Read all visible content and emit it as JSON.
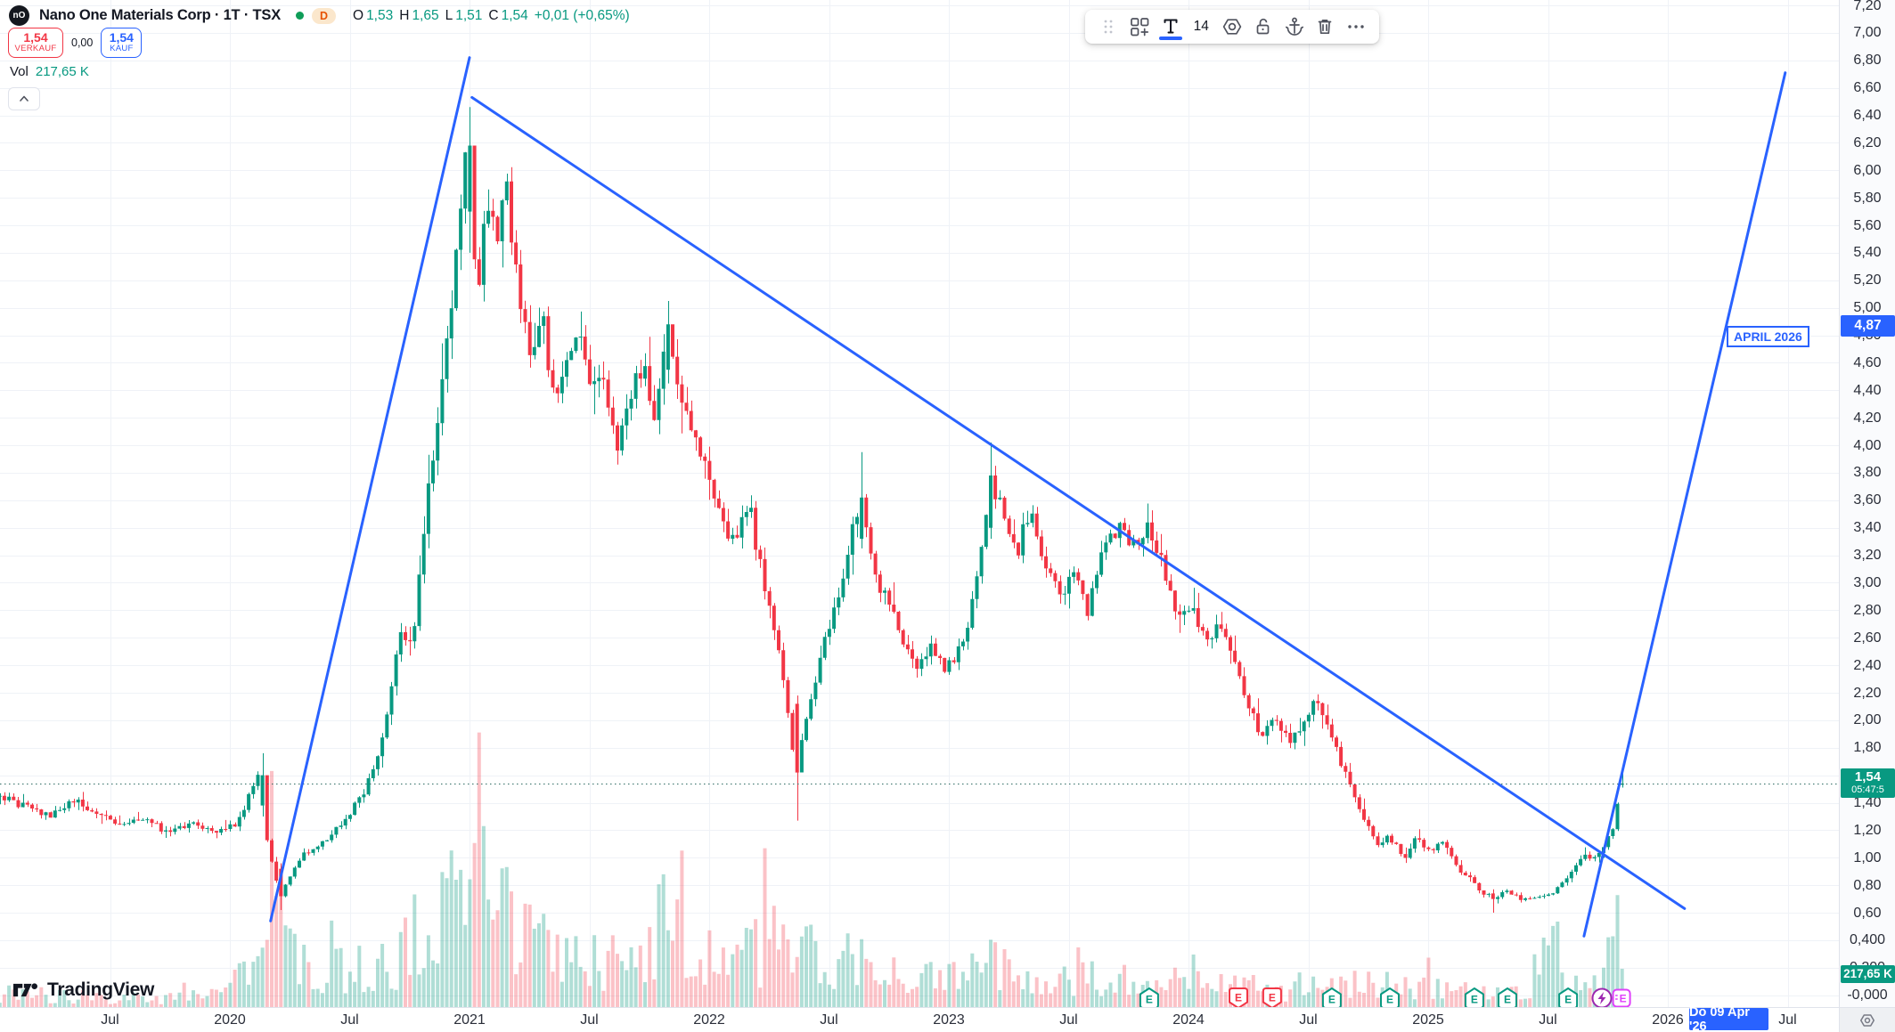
{
  "header": {
    "logo": "nO",
    "title": "Nano One Materials Corp · 1T · TSX",
    "interval_badge": "D",
    "ohlc": {
      "o_label": "O",
      "o": "1,53",
      "h_label": "H",
      "h": "1,65",
      "l_label": "L",
      "l": "1,51",
      "c_label": "C",
      "c": "1,54",
      "change": "+0,01 (+0,65%)"
    }
  },
  "trade_panel": {
    "sell_price": "1,54",
    "sell_label": "VERKAUF",
    "spread": "0,00",
    "buy_price": "1,54",
    "buy_label": "KAUF"
  },
  "volume_row": {
    "label": "Vol",
    "value": "217,65 K"
  },
  "toolbar": {
    "font_size": "14",
    "icons": [
      "drag-handle",
      "template",
      "text-tool-active",
      "font-size",
      "settings",
      "lock-open",
      "anchor",
      "trash",
      "more"
    ]
  },
  "watermark": {
    "text": "TradingView"
  },
  "annotation": {
    "text": "APRIL 2026"
  },
  "price_axis": {
    "ticks": [
      [
        7.2,
        "7,20"
      ],
      [
        7.0,
        "7,00"
      ],
      [
        6.8,
        "6,80"
      ],
      [
        6.6,
        "6,60"
      ],
      [
        6.4,
        "6,40"
      ],
      [
        6.2,
        "6,20"
      ],
      [
        6.0,
        "6,00"
      ],
      [
        5.8,
        "5,80"
      ],
      [
        5.6,
        "5,60"
      ],
      [
        5.4,
        "5,40"
      ],
      [
        5.2,
        "5,20"
      ],
      [
        5.0,
        "5,00"
      ],
      [
        4.8,
        "4,80"
      ],
      [
        4.6,
        "4,60"
      ],
      [
        4.4,
        "4,40"
      ],
      [
        4.2,
        "4,20"
      ],
      [
        4.0,
        "4,00"
      ],
      [
        3.8,
        "3,80"
      ],
      [
        3.6,
        "3,60"
      ],
      [
        3.4,
        "3,40"
      ],
      [
        3.2,
        "3,20"
      ],
      [
        3.0,
        "3,00"
      ],
      [
        2.8,
        "2,80"
      ],
      [
        2.6,
        "2,60"
      ],
      [
        2.4,
        "2,40"
      ],
      [
        2.2,
        "2,20"
      ],
      [
        2.0,
        "2,00"
      ],
      [
        1.8,
        "1,80"
      ],
      [
        1.6,
        "1,60"
      ],
      [
        1.4,
        "1,40"
      ],
      [
        1.2,
        "1,20"
      ],
      [
        1.0,
        "1,00"
      ],
      [
        0.8,
        "0,80"
      ],
      [
        0.6,
        "0,60"
      ],
      [
        0.4,
        "0,400"
      ],
      [
        0.2,
        "0,200"
      ],
      [
        0.0,
        "-0,000"
      ]
    ],
    "current_price_label": {
      "price": "1,54",
      "countdown": "05:47:5",
      "color": "#089981"
    },
    "drawing_price_label": {
      "price": "4,87",
      "color": "#2962ff"
    },
    "volume_label": {
      "value": "217,65 K",
      "color": "#089981"
    }
  },
  "time_axis": {
    "ticks": [
      [
        2019.5,
        "Jul"
      ],
      [
        2020,
        "2020"
      ],
      [
        2020.5,
        "Jul"
      ],
      [
        2021,
        "2021"
      ],
      [
        2021.5,
        "Jul"
      ],
      [
        2022,
        "2022"
      ],
      [
        2022.5,
        "Jul"
      ],
      [
        2023,
        "2023"
      ],
      [
        2023.5,
        "Jul"
      ],
      [
        2024,
        "2024"
      ],
      [
        2024.5,
        "Jul"
      ],
      [
        2025,
        "2025"
      ],
      [
        2025.5,
        "Jul"
      ],
      [
        2026,
        "2026"
      ],
      [
        2026.5,
        "Jul"
      ]
    ],
    "date_label": {
      "text": "Do 09 Apr '26",
      "color": "#2962ff"
    }
  },
  "chart_data": {
    "type": "candlestick",
    "title": "Nano One Materials Corp · 1T · TSX",
    "ylim": [
      0,
      7.2
    ],
    "xlim": [
      2019.04,
      2026.7
    ],
    "xstart": 2019.04,
    "xend": 2025.81,
    "grid": true,
    "current_price": 1.54,
    "last_candle": {
      "o": 1.53,
      "h": 1.65,
      "l": 1.51,
      "c": 1.54
    },
    "colors": {
      "up": "#089981",
      "down": "#f23645",
      "trendline": "#2962ff"
    },
    "close_anchors": [
      [
        2019.04,
        1.45
      ],
      [
        2019.15,
        1.38
      ],
      [
        2019.25,
        1.3
      ],
      [
        2019.35,
        1.42
      ],
      [
        2019.45,
        1.34
      ],
      [
        2019.55,
        1.24
      ],
      [
        2019.65,
        1.3
      ],
      [
        2019.75,
        1.17
      ],
      [
        2019.85,
        1.25
      ],
      [
        2019.95,
        1.2
      ],
      [
        2020.04,
        1.25
      ],
      [
        2020.1,
        1.48
      ],
      [
        2020.13,
        1.6
      ],
      [
        2020.17,
        1.05
      ],
      [
        2020.22,
        0.72
      ],
      [
        2020.3,
        1.0
      ],
      [
        2020.4,
        1.12
      ],
      [
        2020.5,
        1.3
      ],
      [
        2020.58,
        1.52
      ],
      [
        2020.66,
        1.95
      ],
      [
        2020.72,
        2.7
      ],
      [
        2020.77,
        2.55
      ],
      [
        2020.83,
        3.55
      ],
      [
        2020.89,
        4.3
      ],
      [
        2020.94,
        5.1
      ],
      [
        2020.98,
        5.9
      ],
      [
        2021.0,
        6.18
      ],
      [
        2021.04,
        5.05
      ],
      [
        2021.08,
        5.85
      ],
      [
        2021.12,
        5.55
      ],
      [
        2021.16,
        5.9
      ],
      [
        2021.21,
        5.25
      ],
      [
        2021.26,
        4.55
      ],
      [
        2021.31,
        4.95
      ],
      [
        2021.36,
        4.3
      ],
      [
        2021.42,
        4.62
      ],
      [
        2021.47,
        4.92
      ],
      [
        2021.52,
        4.35
      ],
      [
        2021.57,
        4.55
      ],
      [
        2021.62,
        4.0
      ],
      [
        2021.68,
        4.32
      ],
      [
        2021.73,
        4.55
      ],
      [
        2021.78,
        4.25
      ],
      [
        2021.83,
        4.88
      ],
      [
        2021.88,
        4.35
      ],
      [
        2021.94,
        4.05
      ],
      [
        2022.0,
        3.85
      ],
      [
        2022.06,
        3.45
      ],
      [
        2022.12,
        3.3
      ],
      [
        2022.17,
        3.6
      ],
      [
        2022.22,
        3.15
      ],
      [
        2022.27,
        2.8
      ],
      [
        2022.32,
        2.3
      ],
      [
        2022.37,
        1.62
      ],
      [
        2022.43,
        2.1
      ],
      [
        2022.49,
        2.55
      ],
      [
        2022.55,
        2.95
      ],
      [
        2022.6,
        3.3
      ],
      [
        2022.64,
        3.62
      ],
      [
        2022.7,
        3.05
      ],
      [
        2022.76,
        2.85
      ],
      [
        2022.82,
        2.55
      ],
      [
        2022.88,
        2.35
      ],
      [
        2022.94,
        2.52
      ],
      [
        2023.0,
        2.35
      ],
      [
        2023.06,
        2.55
      ],
      [
        2023.12,
        2.9
      ],
      [
        2023.18,
        3.78
      ],
      [
        2023.24,
        3.45
      ],
      [
        2023.3,
        3.25
      ],
      [
        2023.35,
        3.55
      ],
      [
        2023.41,
        3.15
      ],
      [
        2023.47,
        2.9
      ],
      [
        2023.53,
        3.05
      ],
      [
        2023.59,
        2.8
      ],
      [
        2023.65,
        3.2
      ],
      [
        2023.72,
        3.45
      ],
      [
        2023.78,
        3.28
      ],
      [
        2023.84,
        3.45
      ],
      [
        2023.9,
        3.12
      ],
      [
        2023.96,
        2.75
      ],
      [
        2024.02,
        2.85
      ],
      [
        2024.08,
        2.6
      ],
      [
        2024.14,
        2.7
      ],
      [
        2024.2,
        2.4
      ],
      [
        2024.26,
        2.12
      ],
      [
        2024.31,
        1.9
      ],
      [
        2024.37,
        2.05
      ],
      [
        2024.43,
        1.85
      ],
      [
        2024.49,
        2.0
      ],
      [
        2024.55,
        2.15
      ],
      [
        2024.61,
        1.85
      ],
      [
        2024.67,
        1.6
      ],
      [
        2024.73,
        1.35
      ],
      [
        2024.79,
        1.1
      ],
      [
        2024.85,
        1.15
      ],
      [
        2024.91,
        1.0
      ],
      [
        2024.96,
        1.15
      ],
      [
        2025.02,
        1.05
      ],
      [
        2025.07,
        1.12
      ],
      [
        2025.12,
        0.95
      ],
      [
        2025.18,
        0.85
      ],
      [
        2025.23,
        0.76
      ],
      [
        2025.28,
        0.7
      ],
      [
        2025.34,
        0.76
      ],
      [
        2025.4,
        0.7
      ],
      [
        2025.46,
        0.72
      ],
      [
        2025.52,
        0.74
      ],
      [
        2025.58,
        0.82
      ],
      [
        2025.63,
        0.95
      ],
      [
        2025.66,
        1.05
      ],
      [
        2025.7,
        0.98
      ],
      [
        2025.74,
        1.08
      ],
      [
        2025.78,
        1.2
      ],
      [
        2025.81,
        1.54
      ]
    ],
    "key_candles": [
      {
        "t": 2020.13,
        "o": 1.38,
        "h": 1.76,
        "l": 1.3,
        "c": 1.6
      },
      {
        "t": 2020.22,
        "o": 0.92,
        "h": 0.96,
        "l": 0.62,
        "c": 0.72
      },
      {
        "t": 2021.0,
        "o": 5.7,
        "h": 6.46,
        "l": 5.4,
        "c": 6.18
      },
      {
        "t": 2021.83,
        "o": 4.55,
        "h": 5.05,
        "l": 4.45,
        "c": 4.88
      },
      {
        "t": 2022.37,
        "o": 2.12,
        "h": 2.18,
        "l": 1.27,
        "c": 1.62
      },
      {
        "t": 2022.64,
        "o": 3.32,
        "h": 3.95,
        "l": 3.25,
        "c": 3.62
      },
      {
        "t": 2023.18,
        "o": 3.4,
        "h": 4.02,
        "l": 3.32,
        "c": 3.78
      },
      {
        "t": 2025.28,
        "o": 0.74,
        "h": 0.77,
        "l": 0.6,
        "c": 0.7
      },
      {
        "t": 2025.81,
        "o": 1.53,
        "h": 1.65,
        "l": 1.51,
        "c": 1.54
      }
    ],
    "volume_anchors": [
      [
        2019.04,
        16
      ],
      [
        2019.5,
        11
      ],
      [
        2019.9,
        10
      ],
      [
        2020.08,
        40
      ],
      [
        2020.2,
        115
      ],
      [
        2020.35,
        45
      ],
      [
        2020.6,
        48
      ],
      [
        2020.8,
        75
      ],
      [
        2020.95,
        130
      ],
      [
        2021.0,
        190
      ],
      [
        2021.08,
        115
      ],
      [
        2021.3,
        75
      ],
      [
        2021.5,
        55
      ],
      [
        2021.7,
        48
      ],
      [
        2021.84,
        145
      ],
      [
        2021.95,
        65
      ],
      [
        2022.1,
        48
      ],
      [
        2022.37,
        88
      ],
      [
        2022.5,
        48
      ],
      [
        2022.64,
        66
      ],
      [
        2022.8,
        38
      ],
      [
        2023.0,
        33
      ],
      [
        2023.18,
        55
      ],
      [
        2023.4,
        38
      ],
      [
        2023.6,
        33
      ],
      [
        2023.8,
        28
      ],
      [
        2024.0,
        28
      ],
      [
        2024.2,
        24
      ],
      [
        2024.4,
        20
      ],
      [
        2024.6,
        24
      ],
      [
        2024.8,
        28
      ],
      [
        2025.0,
        24
      ],
      [
        2025.2,
        18
      ],
      [
        2025.4,
        14
      ],
      [
        2025.52,
        80
      ],
      [
        2025.6,
        22
      ],
      [
        2025.68,
        55
      ],
      [
        2025.74,
        35
      ],
      [
        2025.81,
        120
      ]
    ],
    "trendlines": [
      {
        "t1": 2020.17,
        "p1": 0.54,
        "t2": 2021.0,
        "p2": 6.82
      },
      {
        "t1": 2021.01,
        "p1": 6.53,
        "t2": 2026.07,
        "p2": 0.63
      },
      {
        "t1": 2025.65,
        "p1": 0.43,
        "t2": 2026.49,
        "p2": 6.71
      }
    ],
    "annotation": {
      "text": "APRIL 2026",
      "t": 2026.26,
      "price": 4.8
    },
    "events": [
      {
        "t": 2023.836,
        "kind": "earnings"
      },
      {
        "t": 2024.208,
        "kind": "earnings-miss"
      },
      {
        "t": 2024.349,
        "kind": "earnings-miss"
      },
      {
        "t": 2024.598,
        "kind": "earnings"
      },
      {
        "t": 2024.84,
        "kind": "earnings"
      },
      {
        "t": 2025.193,
        "kind": "earnings"
      },
      {
        "t": 2025.331,
        "kind": "earnings"
      },
      {
        "t": 2025.584,
        "kind": "earnings"
      },
      {
        "t": 2025.725,
        "kind": "flash"
      },
      {
        "t": 2025.807,
        "kind": "earnings-alt"
      }
    ]
  }
}
